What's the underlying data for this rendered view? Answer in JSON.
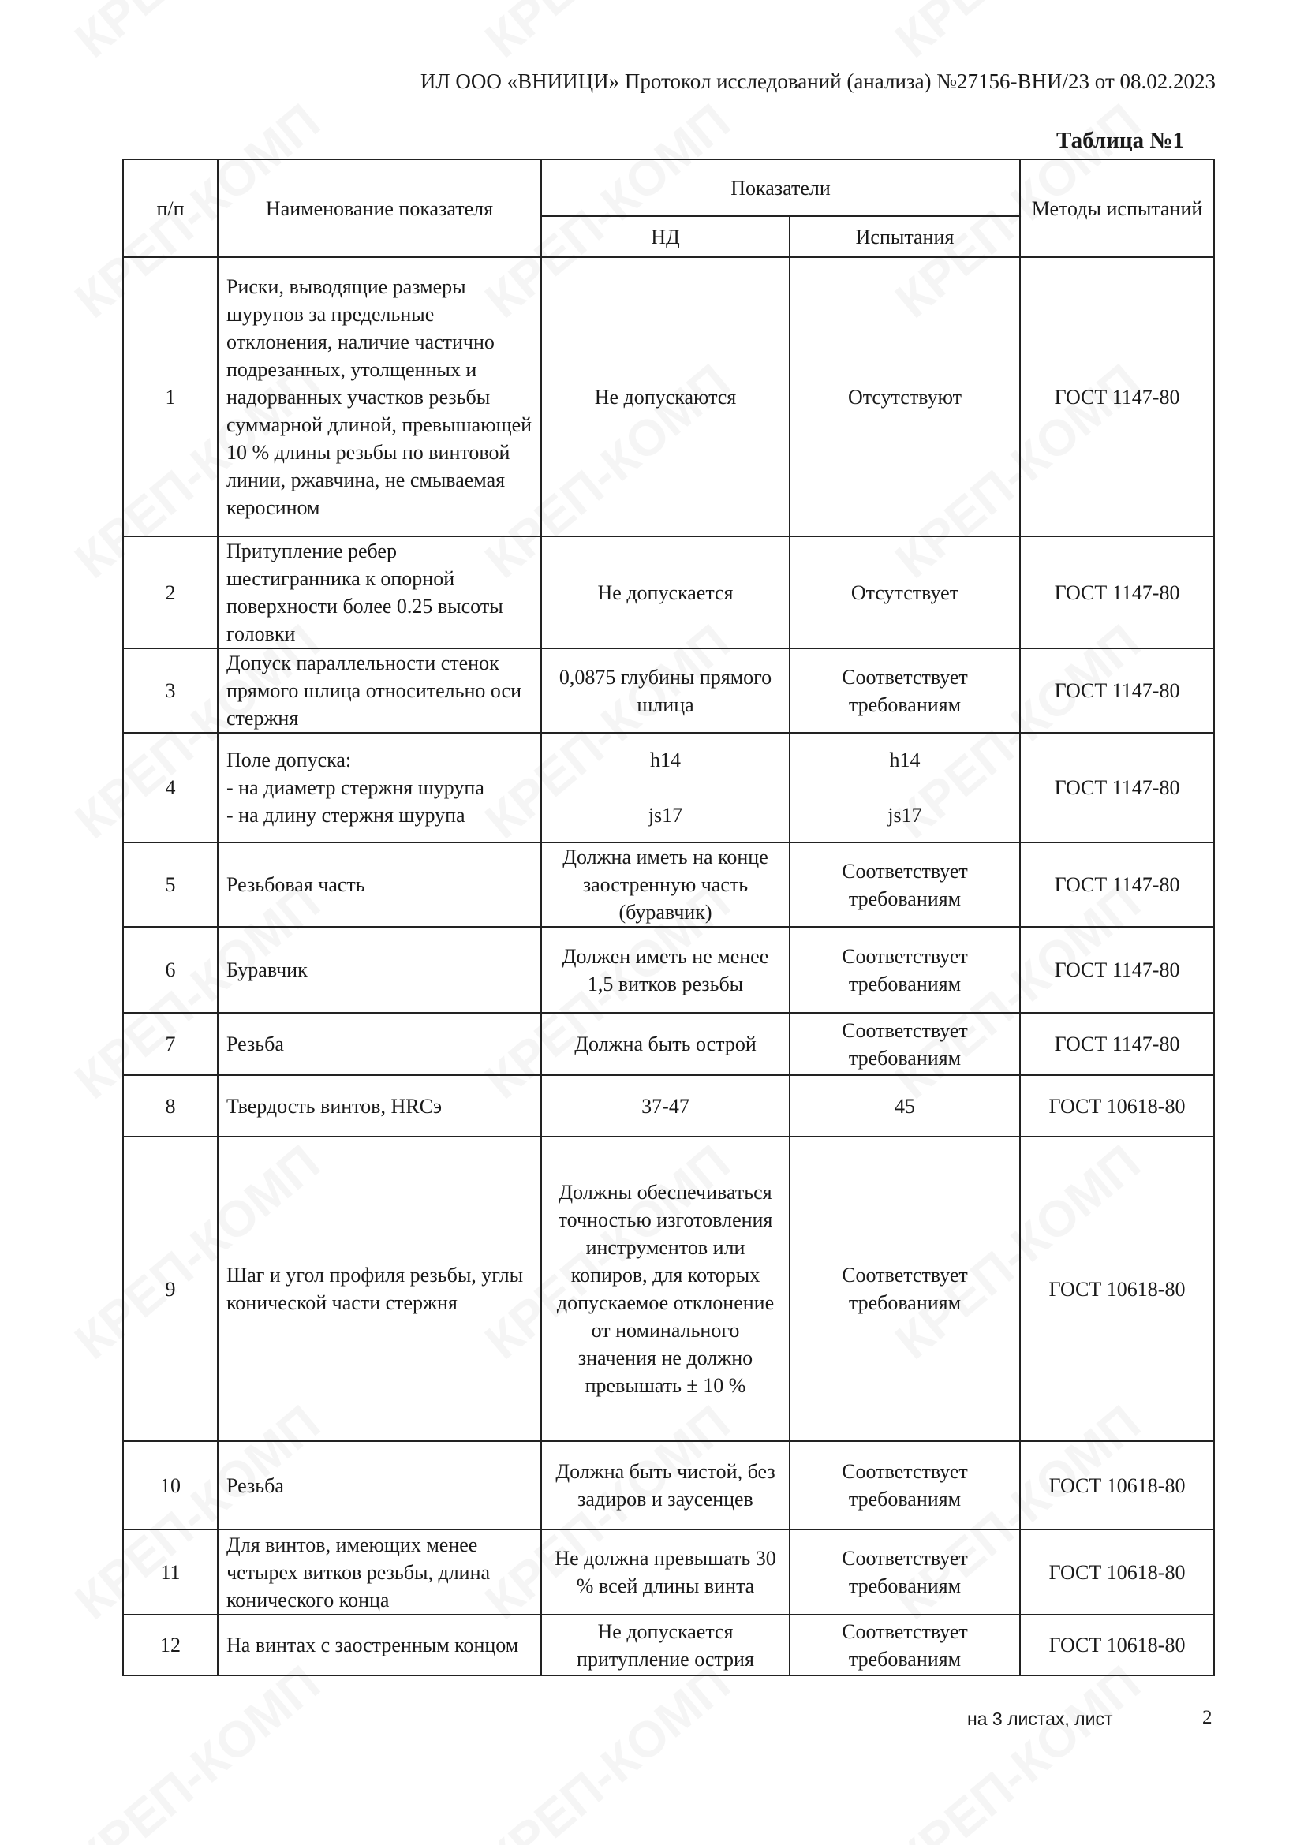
{
  "header": "ИЛ ООО «ВНИИЦИ» Протокол исследований (анализа) №27156-ВНИ/23 от 08.02.2023",
  "table_caption": "Таблица №1",
  "watermark": "КРЕП-КОМП",
  "columns": {
    "num": "п/п",
    "name": "Наименование показателя",
    "indicators": "Показатели",
    "nd": "НД",
    "test": "Испытания",
    "methods": "Методы испытаний"
  },
  "rows": [
    {
      "num": "1",
      "name": "Риски, выводящие размеры шурупов за предельные отклонения, наличие частично подрезанных, утолщенных и надорванных участков резьбы суммарной длиной, превышающей 10 % длины резьбы по винтовой линии, ржавчина, не смываемая керосином",
      "nd": "Не допускаются",
      "test": "Отсутствуют",
      "method": "ГОСТ 1147-80"
    },
    {
      "num": "2",
      "name": "Притупление ребер шестигранника к опорной поверхности более 0.25 высоты головки",
      "nd": "Не допускается",
      "test": "Отсутствует",
      "method": "ГОСТ 1147-80"
    },
    {
      "num": "3",
      "name": "Допуск параллельности стенок прямого шлица относительно оси стержня",
      "nd": "0,0875 глубины прямого шлица",
      "test": "Соответствует требованиям",
      "method": "ГОСТ 1147-80"
    },
    {
      "num": "4",
      "name": "Поле допуска:\n- на диаметр стержня шурупа\n- на длину стержня шурупа",
      "nd": "h14\n\njs17",
      "test": "h14\n\njs17",
      "method": "ГОСТ 1147-80"
    },
    {
      "num": "5",
      "name": "Резьбовая часть",
      "nd": "Должна иметь на конце заостренную часть (буравчик)",
      "test": "Соответствует требованиям",
      "method": "ГОСТ 1147-80"
    },
    {
      "num": "6",
      "name": "Буравчик",
      "nd": "Должен иметь не менее 1,5 витков резьбы",
      "test": "Соответствует требованиям",
      "method": "ГОСТ 1147-80"
    },
    {
      "num": "7",
      "name": "Резьба",
      "nd": "Должна быть острой",
      "test": "Соответствует требованиям",
      "method": "ГОСТ 1147-80"
    },
    {
      "num": "8",
      "name": "Твердость винтов, HRCэ",
      "nd": "37-47",
      "test": "45",
      "method": "ГОСТ 10618-80"
    },
    {
      "num": "9",
      "name": "Шаг и угол профиля резьбы, углы конической части стержня",
      "nd": "Должны обеспечиваться точностью изготовления инструментов или копиров, для которых допускаемое отклонение от номинального значения не должно превышать ± 10 %",
      "test": "Соответствует требованиям",
      "method": "ГОСТ 10618-80"
    },
    {
      "num": "10",
      "name": "Резьба",
      "nd": "Должна быть чистой, без задиров и заусенцев",
      "test": "Соответствует требованиям",
      "method": "ГОСТ 10618-80"
    },
    {
      "num": "11",
      "name": "Для винтов, имеющих менее четырех витков резьбы, длина конического конца",
      "nd": "Не должна превышать 30 % всей длины винта",
      "test": "Соответствует требованиям",
      "method": "ГОСТ 10618-80"
    },
    {
      "num": "12",
      "name": "На винтах с заостренным концом",
      "nd": "Не допускается притупление острия",
      "test": "Соответствует требованиям",
      "method": "ГОСТ 10618-80"
    }
  ],
  "footer": {
    "sheets_label": "на 3 листах, лист",
    "page": "2"
  }
}
